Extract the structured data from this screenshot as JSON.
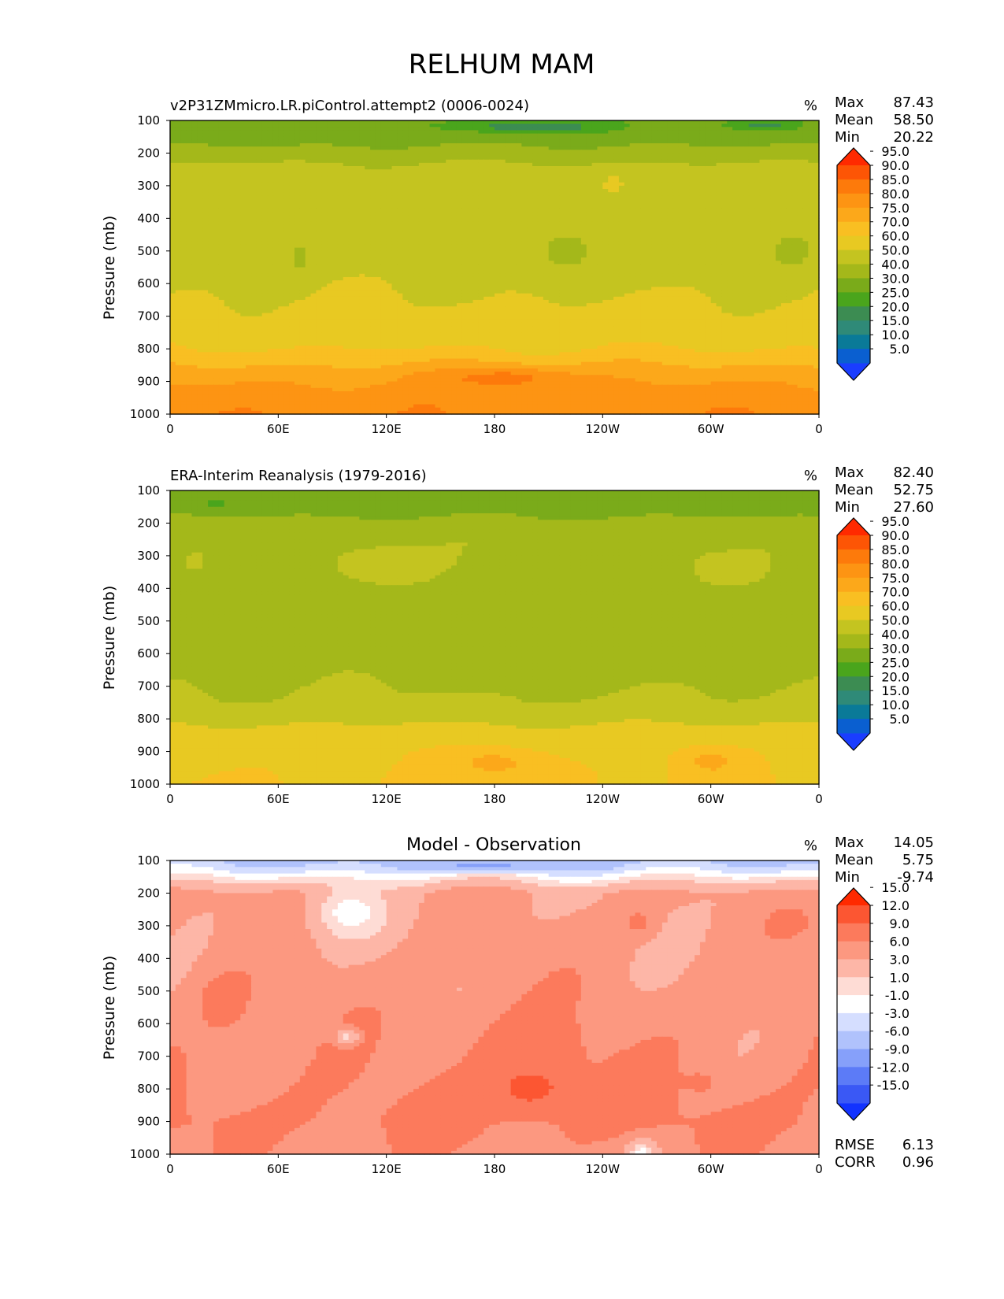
{
  "figure_title": "RELHUM MAM",
  "units": "%",
  "stat_labels": {
    "max": "Max",
    "mean": "Mean",
    "min": "Min",
    "rmse": "RMSE",
    "corr": "CORR"
  },
  "chart_data": [
    {
      "type": "heatmap",
      "title": "v2P31ZMmicro.LR.piControl.attempt2 (0006-0024)",
      "title_position": "left",
      "units": "%",
      "xlabel": "",
      "ylabel": "Pressure (mb)",
      "x_ticks": [
        "0",
        "60E",
        "120E",
        "180",
        "120W",
        "60W",
        "0"
      ],
      "y_ticks": [
        "100",
        "200",
        "300",
        "400",
        "500",
        "600",
        "700",
        "800",
        "900",
        "1000"
      ],
      "ylim": [
        1000,
        100
      ],
      "stats": {
        "max": "87.43",
        "mean": "58.50",
        "min": "20.22"
      },
      "colorbar": {
        "levels": [
          "5.0",
          "10.0",
          "15.0",
          "20.0",
          "25.0",
          "30.0",
          "40.0",
          "50.0",
          "60.0",
          "70.0",
          "75.0",
          "80.0",
          "85.0",
          "90.0",
          "95.0"
        ],
        "colors": [
          "#1a3dff",
          "#0a5fd0",
          "#0a7a98",
          "#2f8a78",
          "#3c8c52",
          "#4aa51c",
          "#7aab1a",
          "#a4b81a",
          "#c4c420",
          "#e8c922",
          "#f9bf22",
          "#fca81a",
          "#fd9413",
          "#fd7a0b",
          "#fd5505",
          "#ff2a00"
        ],
        "extend": "both"
      },
      "bands": [
        {
          "p": 100,
          "v": 32
        },
        {
          "p": 140,
          "v": 34
        },
        {
          "p": 190,
          "v": 42
        },
        {
          "p": 230,
          "v": 50
        },
        {
          "p": 300,
          "v": 58
        },
        {
          "p": 500,
          "v": 56
        },
        {
          "p": 700,
          "v": 62
        },
        {
          "p": 800,
          "v": 70
        },
        {
          "p": 870,
          "v": 77
        },
        {
          "p": 930,
          "v": 82
        },
        {
          "p": 1000,
          "v": 84
        }
      ],
      "blobs": [
        {
          "x": 72,
          "p": 520,
          "rx": 8,
          "rp": 80,
          "v": 48
        },
        {
          "x": 220,
          "p": 500,
          "rx": 28,
          "rp": 110,
          "v": 48
        },
        {
          "x": 345,
          "p": 500,
          "rx": 20,
          "rp": 100,
          "v": 48
        },
        {
          "x": 200,
          "p": 120,
          "rx": 55,
          "rp": 25,
          "v": 22
        },
        {
          "x": 330,
          "p": 115,
          "rx": 25,
          "rp": 20,
          "v": 24
        },
        {
          "x": 185,
          "p": 890,
          "rx": 45,
          "rp": 40,
          "v": 87
        },
        {
          "x": 246,
          "p": 290,
          "rx": 4,
          "rp": 30,
          "v": 72
        }
      ]
    },
    {
      "type": "heatmap",
      "title": "ERA-Interim Reanalysis (1979-2016)",
      "title_position": "left",
      "units": "%",
      "xlabel": "",
      "ylabel": "Pressure (mb)",
      "x_ticks": [
        "0",
        "60E",
        "120E",
        "180",
        "120W",
        "60W",
        "0"
      ],
      "y_ticks": [
        "100",
        "200",
        "300",
        "400",
        "500",
        "600",
        "700",
        "800",
        "900",
        "1000"
      ],
      "ylim": [
        1000,
        100
      ],
      "stats": {
        "max": "82.40",
        "mean": "52.75",
        "min": "27.60"
      },
      "colorbar": {
        "levels": [
          "5.0",
          "10.0",
          "15.0",
          "20.0",
          "25.0",
          "30.0",
          "40.0",
          "50.0",
          "60.0",
          "70.0",
          "75.0",
          "80.0",
          "85.0",
          "90.0",
          "95.0"
        ],
        "colors": [
          "#1a3dff",
          "#0a5fd0",
          "#0a7a98",
          "#2f8a78",
          "#3c8c52",
          "#4aa51c",
          "#7aab1a",
          "#a4b81a",
          "#c4c420",
          "#e8c922",
          "#f9bf22",
          "#fca81a",
          "#fd9413",
          "#fd7a0b",
          "#fd5505",
          "#ff2a00"
        ],
        "extend": "both"
      },
      "bands": [
        {
          "p": 100,
          "v": 35
        },
        {
          "p": 160,
          "v": 37
        },
        {
          "p": 210,
          "v": 44
        },
        {
          "p": 260,
          "v": 48
        },
        {
          "p": 400,
          "v": 47
        },
        {
          "p": 600,
          "v": 46
        },
        {
          "p": 750,
          "v": 52
        },
        {
          "p": 830,
          "v": 62
        },
        {
          "p": 900,
          "v": 68
        },
        {
          "p": 1000,
          "v": 70
        }
      ],
      "blobs": [
        {
          "x": 15,
          "p": 320,
          "rx": 12,
          "rp": 60,
          "v": 53
        },
        {
          "x": 120,
          "p": 330,
          "rx": 45,
          "rp": 90,
          "v": 53
        },
        {
          "x": 305,
          "p": 340,
          "rx": 25,
          "rp": 70,
          "v": 53
        },
        {
          "x": 45,
          "p": 450,
          "rx": 35,
          "rp": 250,
          "v": 45
        },
        {
          "x": 215,
          "p": 550,
          "rx": 70,
          "rp": 180,
          "v": 45
        },
        {
          "x": 25,
          "p": 140,
          "rx": 15,
          "rp": 25,
          "v": 28
        },
        {
          "x": 165,
          "p": 130,
          "rx": 35,
          "rp": 25,
          "v": 30
        },
        {
          "x": 180,
          "p": 935,
          "rx": 40,
          "rp": 70,
          "v": 76
        },
        {
          "x": 300,
          "p": 930,
          "rx": 25,
          "rp": 70,
          "v": 76
        }
      ]
    },
    {
      "type": "heatmap",
      "title": "Model - Observation",
      "title_position": "center",
      "units": "%",
      "xlabel": "",
      "ylabel": "Pressure (mb)",
      "x_ticks": [
        "0",
        "60E",
        "120E",
        "180",
        "120W",
        "60W",
        "0"
      ],
      "y_ticks": [
        "100",
        "200",
        "300",
        "400",
        "500",
        "600",
        "700",
        "800",
        "900",
        "1000"
      ],
      "ylim": [
        1000,
        100
      ],
      "stats": {
        "max": "14.05",
        "mean": "5.75",
        "min": "-9.74"
      },
      "metrics": {
        "rmse": "6.13",
        "corr": "0.96"
      },
      "colorbar": {
        "levels": [
          "-15.0",
          "-12.0",
          "-9.0",
          "-6.0",
          "-3.0",
          "-1.0",
          "1.0",
          "3.0",
          "6.0",
          "9.0",
          "12.0",
          "15.0"
        ],
        "colors": [
          "#1232ff",
          "#3a58f5",
          "#5c7bf7",
          "#86a0fa",
          "#b0c2fc",
          "#d5deff",
          "#ffffff",
          "#fedcd5",
          "#fdb6a7",
          "#fc9880",
          "#fc7a5c",
          "#fc5632",
          "#ff2a00"
        ],
        "extend": "both"
      },
      "bands": [
        {
          "p": 100,
          "v": -4
        },
        {
          "p": 130,
          "v": -1.5
        },
        {
          "p": 160,
          "v": 2
        },
        {
          "p": 200,
          "v": 6.5
        },
        {
          "p": 400,
          "v": 7
        },
        {
          "p": 700,
          "v": 8
        },
        {
          "p": 900,
          "v": 9.5
        },
        {
          "p": 1000,
          "v": 8
        }
      ],
      "blobs": [
        {
          "x": 100,
          "p": 260,
          "rx": 25,
          "rp": 110,
          "v": 0
        },
        {
          "x": 98,
          "p": 640,
          "rx": 8,
          "rp": 30,
          "v": 2
        },
        {
          "x": 200,
          "p": 700,
          "rx": 45,
          "rp": 200,
          "v": 10.5
        },
        {
          "x": 200,
          "p": 800,
          "rx": 25,
          "rp": 80,
          "v": 13
        },
        {
          "x": 30,
          "p": 530,
          "rx": 18,
          "rp": 110,
          "v": 10.5
        },
        {
          "x": 175,
          "p": 115,
          "rx": 40,
          "rp": 20,
          "v": -7
        },
        {
          "x": 295,
          "p": 780,
          "rx": 10,
          "rp": 40,
          "v": 10
        },
        {
          "x": 345,
          "p": 290,
          "rx": 15,
          "rp": 60,
          "v": 10
        },
        {
          "x": 260,
          "p": 290,
          "rx": 10,
          "rp": 50,
          "v": 10
        },
        {
          "x": 262,
          "p": 1000,
          "rx": 10,
          "rp": 50,
          "v": 0
        }
      ]
    }
  ]
}
